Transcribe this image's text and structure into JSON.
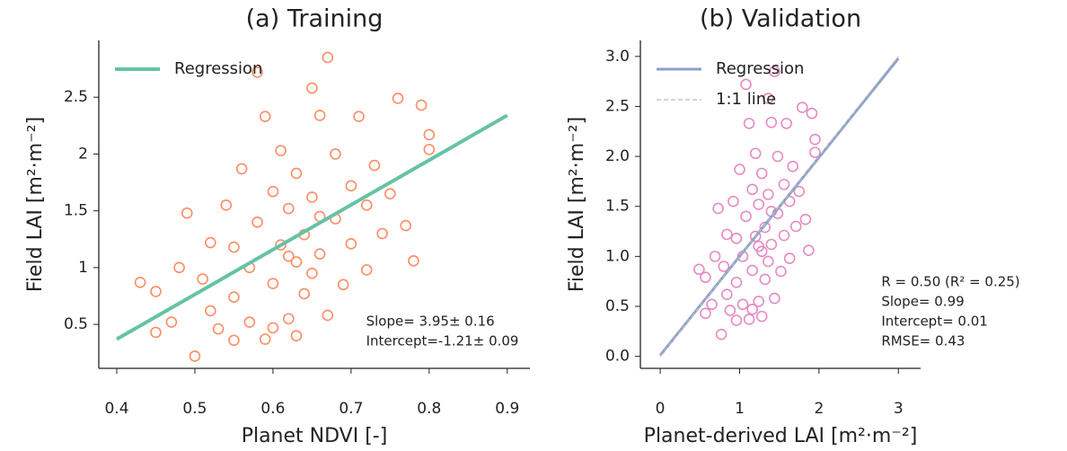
{
  "chart_data": [
    {
      "type": "scatter",
      "title": "(a) Training",
      "x_label": "Planet NDVI [-]",
      "y_label": "Field LAI [m²·m⁻²]",
      "xlim": [
        0.377,
        0.929
      ],
      "ylim": [
        0.113,
        3.0
      ],
      "xticks": [
        0.4,
        0.5,
        0.6,
        0.7,
        0.8,
        0.9
      ],
      "yticks": [
        0.5,
        1.0,
        1.5,
        2.0,
        2.5
      ],
      "legend": "upper left",
      "annotations": [
        "Slope= 3.95± 0.16",
        "Intercept=-1.21± 0.09"
      ],
      "points": {
        "color": "#fc8d62",
        "x": [
          0.43,
          0.45,
          0.45,
          0.47,
          0.48,
          0.49,
          0.5,
          0.51,
          0.52,
          0.52,
          0.53,
          0.54,
          0.55,
          0.55,
          0.56,
          0.57,
          0.57,
          0.58,
          0.58,
          0.59,
          0.59,
          0.6,
          0.6,
          0.61,
          0.61,
          0.62,
          0.62,
          0.63,
          0.63,
          0.64,
          0.64,
          0.65,
          0.65,
          0.65,
          0.66,
          0.66,
          0.67,
          0.67,
          0.68,
          0.68,
          0.69,
          0.7,
          0.7,
          0.71,
          0.72,
          0.72,
          0.73,
          0.74,
          0.75,
          0.76,
          0.77,
          0.79,
          0.8,
          0.8,
          0.78,
          0.63,
          0.6,
          0.55,
          0.66,
          0.62
        ],
        "values": [
          0.87,
          0.43,
          0.79,
          0.52,
          1.0,
          1.48,
          0.22,
          0.9,
          1.22,
          0.62,
          0.46,
          1.55,
          1.18,
          0.74,
          1.87,
          1.0,
          0.52,
          2.72,
          1.4,
          0.37,
          2.33,
          1.67,
          0.86,
          1.2,
          2.03,
          0.55,
          1.52,
          1.05,
          1.83,
          0.77,
          1.29,
          2.58,
          1.62,
          0.95,
          2.34,
          1.12,
          2.85,
          0.58,
          1.43,
          2.0,
          0.85,
          1.72,
          1.21,
          2.33,
          1.55,
          0.98,
          1.9,
          1.3,
          1.65,
          2.49,
          1.37,
          2.43,
          2.17,
          2.04,
          1.06,
          0.4,
          0.47,
          0.36,
          1.45,
          1.1
        ]
      },
      "series": [
        {
          "name": "Regression",
          "color": "#66c2a5",
          "x": [
            0.4,
            0.9
          ],
          "values": [
            0.37,
            2.34
          ],
          "width": 4,
          "dash": false
        }
      ]
    },
    {
      "type": "scatter",
      "title": "(b) Validation",
      "x_label": "Planet-derived LAI [m²·m⁻²]",
      "y_label": "Field LAI [m²·m⁻²]",
      "xlim": [
        -0.25,
        3.28
      ],
      "ylim": [
        -0.12,
        3.16
      ],
      "xticks": [
        0,
        1,
        2,
        3
      ],
      "yticks": [
        {
          "value": 0,
          "label": "0.0"
        },
        0.5,
        {
          "value": 1,
          "label": "1.0"
        },
        1.5,
        {
          "value": 2,
          "label": "2.0"
        },
        2.5,
        {
          "value": 3,
          "label": "3.0"
        }
      ],
      "legend": "upper left",
      "annotations": [
        "R = 0.50 (R² = 0.25)",
        "Slope= 0.99",
        "Intercept= 0.01",
        "RMSE= 0.43"
      ],
      "points": {
        "color": "#e78ac3",
        "x": [
          0.49,
          0.57,
          0.57,
          0.65,
          0.69,
          0.73,
          0.77,
          0.8,
          0.84,
          0.84,
          0.88,
          0.92,
          0.96,
          0.96,
          1.0,
          1.04,
          1.04,
          1.08,
          1.08,
          1.12,
          1.12,
          1.16,
          1.16,
          1.2,
          1.2,
          1.24,
          1.24,
          1.28,
          1.28,
          1.32,
          1.32,
          1.36,
          1.36,
          1.36,
          1.4,
          1.4,
          1.44,
          1.44,
          1.48,
          1.48,
          1.52,
          1.56,
          1.56,
          1.59,
          1.63,
          1.63,
          1.67,
          1.71,
          1.75,
          1.79,
          1.83,
          1.91,
          1.95,
          1.95,
          1.87,
          1.28,
          1.16,
          0.96,
          1.4,
          1.24
        ],
        "values": [
          0.87,
          0.43,
          0.79,
          0.52,
          1.0,
          1.48,
          0.22,
          0.9,
          1.22,
          0.62,
          0.46,
          1.55,
          1.18,
          0.74,
          1.87,
          1.0,
          0.52,
          2.72,
          1.4,
          0.37,
          2.33,
          1.67,
          0.86,
          1.2,
          2.03,
          0.55,
          1.52,
          1.05,
          1.83,
          0.77,
          1.29,
          2.58,
          1.62,
          0.95,
          2.34,
          1.12,
          2.85,
          0.58,
          1.43,
          2.0,
          0.85,
          1.72,
          1.21,
          2.33,
          1.55,
          0.98,
          1.9,
          1.3,
          1.65,
          2.49,
          1.37,
          2.43,
          2.17,
          2.04,
          1.06,
          0.4,
          0.47,
          0.36,
          1.45,
          1.1
        ]
      },
      "series": [
        {
          "name": "Regression",
          "color": "#8da0cb",
          "x": [
            0,
            3
          ],
          "values": [
            0.01,
            2.98
          ],
          "width": 3,
          "dash": false
        },
        {
          "name": "1:1 line",
          "color": "#bbbbbb",
          "x": [
            0,
            3
          ],
          "values": [
            0,
            3
          ],
          "width": 1.2,
          "dash": true
        }
      ]
    }
  ]
}
